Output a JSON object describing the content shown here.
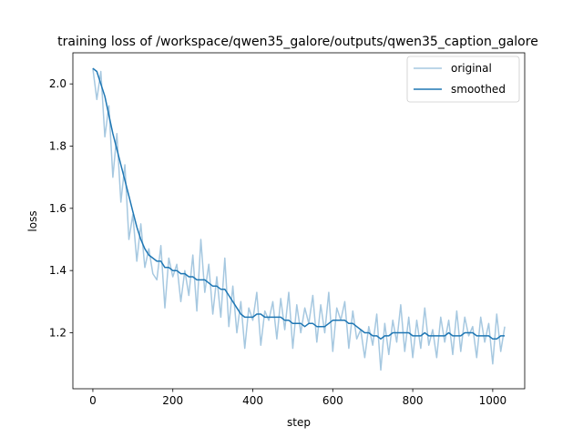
{
  "chart_data": {
    "type": "line",
    "title": "training loss of /workspace/qwen35_galore/outputs/qwen35_caption_galore",
    "xlabel": "step",
    "ylabel": "loss",
    "xlim": [
      -50,
      1080
    ],
    "ylim": [
      1.02,
      2.1
    ],
    "xticks": [
      0,
      200,
      400,
      600,
      800,
      1000
    ],
    "yticks": [
      1.2,
      1.4,
      1.6,
      1.8,
      2.0
    ],
    "xtick_labels": [
      "0",
      "200",
      "400",
      "600",
      "800",
      "1000"
    ],
    "ytick_labels": [
      "1.2",
      "1.4",
      "1.6",
      "1.8",
      "2.0"
    ],
    "grid": false,
    "legend_position": "upper right",
    "series": [
      {
        "name": "original",
        "color": "#a6c8e0",
        "x": [
          0,
          10,
          20,
          30,
          40,
          50,
          60,
          70,
          80,
          90,
          100,
          110,
          120,
          130,
          140,
          150,
          160,
          170,
          180,
          190,
          200,
          210,
          220,
          230,
          240,
          250,
          260,
          270,
          280,
          290,
          300,
          310,
          320,
          330,
          340,
          350,
          360,
          370,
          380,
          390,
          400,
          410,
          420,
          430,
          440,
          450,
          460,
          470,
          480,
          490,
          500,
          510,
          520,
          530,
          540,
          550,
          560,
          570,
          580,
          590,
          600,
          610,
          620,
          630,
          640,
          650,
          660,
          670,
          680,
          690,
          700,
          710,
          720,
          730,
          740,
          750,
          760,
          770,
          780,
          790,
          800,
          810,
          820,
          830,
          840,
          850,
          860,
          870,
          880,
          890,
          900,
          910,
          920,
          930,
          940,
          950,
          960,
          970,
          980,
          990,
          1000,
          1010,
          1020,
          1030
        ],
        "values": [
          2.05,
          1.95,
          2.04,
          1.83,
          1.93,
          1.7,
          1.84,
          1.62,
          1.74,
          1.5,
          1.58,
          1.43,
          1.55,
          1.41,
          1.47,
          1.39,
          1.37,
          1.48,
          1.28,
          1.44,
          1.38,
          1.42,
          1.3,
          1.4,
          1.32,
          1.45,
          1.27,
          1.5,
          1.33,
          1.42,
          1.26,
          1.38,
          1.25,
          1.44,
          1.22,
          1.35,
          1.2,
          1.3,
          1.15,
          1.28,
          1.24,
          1.33,
          1.16,
          1.27,
          1.24,
          1.3,
          1.18,
          1.31,
          1.21,
          1.33,
          1.15,
          1.29,
          1.2,
          1.28,
          1.23,
          1.32,
          1.17,
          1.29,
          1.2,
          1.33,
          1.14,
          1.28,
          1.24,
          1.3,
          1.15,
          1.27,
          1.18,
          1.21,
          1.12,
          1.22,
          1.16,
          1.26,
          1.08,
          1.23,
          1.13,
          1.24,
          1.17,
          1.29,
          1.14,
          1.25,
          1.12,
          1.24,
          1.15,
          1.28,
          1.16,
          1.21,
          1.12,
          1.25,
          1.17,
          1.24,
          1.13,
          1.27,
          1.14,
          1.25,
          1.19,
          1.22,
          1.12,
          1.25,
          1.17,
          1.23,
          1.1,
          1.26,
          1.14,
          1.22
        ]
      },
      {
        "name": "smoothed",
        "color": "#1f77b4",
        "x": [
          0,
          10,
          20,
          30,
          40,
          50,
          60,
          70,
          80,
          90,
          100,
          110,
          120,
          130,
          140,
          150,
          160,
          170,
          180,
          190,
          200,
          210,
          220,
          230,
          240,
          250,
          260,
          270,
          280,
          290,
          300,
          310,
          320,
          330,
          340,
          350,
          360,
          370,
          380,
          390,
          400,
          410,
          420,
          430,
          440,
          450,
          460,
          470,
          480,
          490,
          500,
          510,
          520,
          530,
          540,
          550,
          560,
          570,
          580,
          590,
          600,
          610,
          620,
          630,
          640,
          650,
          660,
          670,
          680,
          690,
          700,
          710,
          720,
          730,
          740,
          750,
          760,
          770,
          780,
          790,
          800,
          810,
          820,
          830,
          840,
          850,
          860,
          870,
          880,
          890,
          900,
          910,
          920,
          930,
          940,
          950,
          960,
          970,
          980,
          990,
          1000,
          1010,
          1020,
          1030
        ],
        "values": [
          2.05,
          2.04,
          2.0,
          1.96,
          1.9,
          1.84,
          1.79,
          1.74,
          1.69,
          1.64,
          1.59,
          1.54,
          1.5,
          1.47,
          1.45,
          1.44,
          1.43,
          1.43,
          1.41,
          1.41,
          1.4,
          1.4,
          1.39,
          1.39,
          1.38,
          1.38,
          1.37,
          1.37,
          1.37,
          1.36,
          1.35,
          1.35,
          1.34,
          1.34,
          1.32,
          1.3,
          1.28,
          1.26,
          1.25,
          1.25,
          1.25,
          1.26,
          1.26,
          1.25,
          1.25,
          1.25,
          1.25,
          1.25,
          1.24,
          1.24,
          1.23,
          1.23,
          1.23,
          1.22,
          1.23,
          1.23,
          1.22,
          1.22,
          1.22,
          1.23,
          1.24,
          1.24,
          1.24,
          1.24,
          1.23,
          1.23,
          1.22,
          1.21,
          1.2,
          1.2,
          1.19,
          1.19,
          1.18,
          1.19,
          1.19,
          1.2,
          1.2,
          1.2,
          1.2,
          1.2,
          1.19,
          1.19,
          1.19,
          1.2,
          1.19,
          1.19,
          1.19,
          1.19,
          1.19,
          1.2,
          1.19,
          1.19,
          1.19,
          1.2,
          1.2,
          1.2,
          1.19,
          1.19,
          1.19,
          1.19,
          1.18,
          1.18,
          1.19,
          1.19
        ]
      }
    ]
  }
}
